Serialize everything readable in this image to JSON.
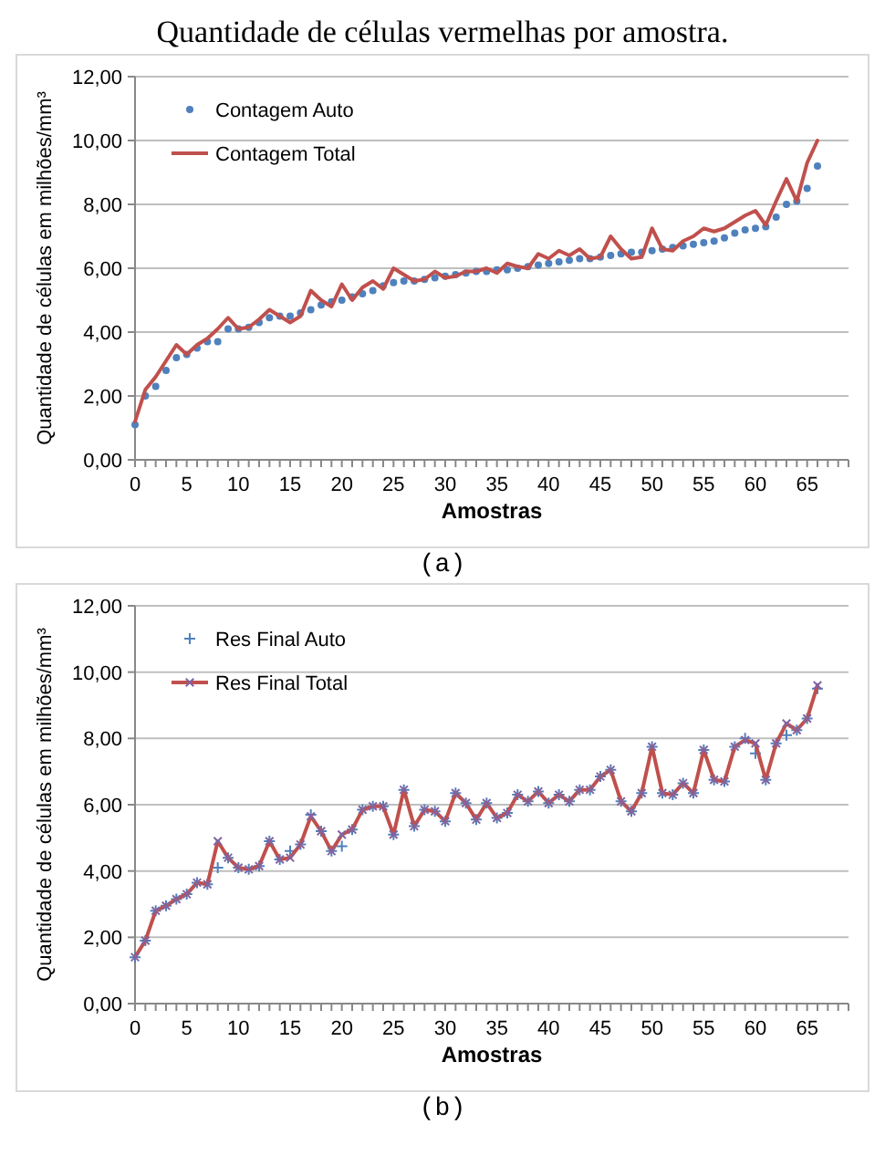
{
  "chart_data": [
    {
      "type": "line",
      "title": "Quantidade de células vermelhas por amostra.",
      "xlabel": "Amostras",
      "ylabel": "Quantidade de células em milhões/mm³",
      "annotations": [
        "(a)"
      ],
      "xlim": [
        0,
        69
      ],
      "xticks": [
        0,
        5,
        10,
        15,
        20,
        25,
        30,
        35,
        40,
        45,
        50,
        55,
        60,
        65
      ],
      "ylim": [
        0,
        12
      ],
      "yticks": [
        {
          "value": 0,
          "label": "0,00"
        },
        {
          "value": 2,
          "label": "2,00"
        },
        {
          "value": 4,
          "label": "4,00"
        },
        {
          "value": 6,
          "label": "6,00"
        },
        {
          "value": 8,
          "label": "8,00"
        },
        {
          "value": 10,
          "label": "10,00"
        },
        {
          "value": 12,
          "label": "12,00"
        }
      ],
      "grid": "y",
      "legend": "top left",
      "x": [
        0,
        1,
        2,
        3,
        4,
        5,
        6,
        7,
        8,
        9,
        10,
        11,
        12,
        13,
        14,
        15,
        16,
        17,
        18,
        19,
        20,
        21,
        22,
        23,
        24,
        25,
        26,
        27,
        28,
        29,
        30,
        31,
        32,
        33,
        34,
        35,
        36,
        37,
        38,
        39,
        40,
        41,
        42,
        43,
        44,
        45,
        46,
        47,
        48,
        49,
        50,
        51,
        52,
        53,
        54,
        55,
        56,
        57,
        58,
        59,
        60,
        61,
        62,
        63,
        64,
        65,
        66
      ],
      "series": [
        {
          "name": "Contagem Auto",
          "type": "scatter",
          "marker": "circle",
          "color": "#4f81bd",
          "values": [
            1.1,
            2.0,
            2.3,
            2.8,
            3.2,
            3.3,
            3.5,
            3.7,
            3.7,
            4.1,
            4.1,
            4.15,
            4.3,
            4.45,
            4.5,
            4.5,
            4.6,
            4.7,
            4.85,
            4.95,
            5.0,
            5.1,
            5.2,
            5.3,
            5.45,
            5.55,
            5.6,
            5.6,
            5.65,
            5.7,
            5.75,
            5.8,
            5.85,
            5.9,
            5.9,
            5.95,
            5.95,
            6.0,
            6.05,
            6.1,
            6.15,
            6.2,
            6.25,
            6.3,
            6.3,
            6.35,
            6.4,
            6.45,
            6.5,
            6.5,
            6.55,
            6.6,
            6.65,
            6.7,
            6.75,
            6.8,
            6.85,
            6.95,
            7.1,
            7.2,
            7.25,
            7.3,
            7.6,
            8.0,
            8.1,
            8.5,
            9.2
          ]
        },
        {
          "name": "Contagem Total",
          "type": "line",
          "marker": "none",
          "color": "#c0504d",
          "values": [
            1.2,
            2.2,
            2.6,
            3.1,
            3.6,
            3.3,
            3.6,
            3.8,
            4.1,
            4.45,
            4.1,
            4.15,
            4.4,
            4.7,
            4.5,
            4.3,
            4.5,
            5.3,
            5.0,
            4.8,
            5.5,
            5.0,
            5.4,
            5.6,
            5.35,
            6.0,
            5.8,
            5.6,
            5.65,
            5.9,
            5.7,
            5.75,
            5.9,
            5.9,
            6.0,
            5.85,
            6.15,
            6.05,
            6.0,
            6.45,
            6.3,
            6.55,
            6.4,
            6.6,
            6.3,
            6.35,
            7.0,
            6.6,
            6.3,
            6.35,
            7.25,
            6.6,
            6.55,
            6.85,
            7.0,
            7.25,
            7.15,
            7.25,
            7.45,
            7.65,
            7.8,
            7.35,
            8.1,
            8.8,
            8.1,
            9.3,
            10.0
          ]
        }
      ]
    },
    {
      "type": "line",
      "xlabel": "Amostras",
      "ylabel": "Quantidade de células em milhões/mm³",
      "annotations": [
        "(b)"
      ],
      "xlim": [
        0,
        69
      ],
      "xticks": [
        0,
        5,
        10,
        15,
        20,
        25,
        30,
        35,
        40,
        45,
        50,
        55,
        60,
        65
      ],
      "ylim": [
        0,
        12
      ],
      "yticks": [
        {
          "value": 0,
          "label": "0,00"
        },
        {
          "value": 2,
          "label": "2,00"
        },
        {
          "value": 4,
          "label": "4,00"
        },
        {
          "value": 6,
          "label": "6,00"
        },
        {
          "value": 8,
          "label": "8,00"
        },
        {
          "value": 10,
          "label": "10,00"
        },
        {
          "value": 12,
          "label": "12,00"
        }
      ],
      "grid": "y",
      "legend": "top left",
      "x": [
        0,
        1,
        2,
        3,
        4,
        5,
        6,
        7,
        8,
        9,
        10,
        11,
        12,
        13,
        14,
        15,
        16,
        17,
        18,
        19,
        20,
        21,
        22,
        23,
        24,
        25,
        26,
        27,
        28,
        29,
        30,
        31,
        32,
        33,
        34,
        35,
        36,
        37,
        38,
        39,
        40,
        41,
        42,
        43,
        44,
        45,
        46,
        47,
        48,
        49,
        50,
        51,
        52,
        53,
        54,
        55,
        56,
        57,
        58,
        59,
        60,
        61,
        62,
        63,
        64,
        65,
        66
      ],
      "series": [
        {
          "name": "Res Final Auto",
          "type": "scatter",
          "marker": "cross",
          "color": "#4f81bd",
          "values": [
            1.4,
            1.9,
            2.8,
            2.95,
            3.15,
            3.3,
            3.65,
            3.6,
            4.1,
            4.4,
            4.1,
            4.05,
            4.15,
            4.9,
            4.35,
            4.6,
            4.8,
            5.7,
            5.2,
            4.6,
            4.75,
            5.25,
            5.85,
            5.95,
            5.95,
            5.1,
            6.45,
            5.35,
            5.85,
            5.8,
            5.5,
            6.35,
            6.05,
            5.55,
            6.05,
            5.6,
            5.75,
            6.3,
            6.1,
            6.4,
            6.05,
            6.3,
            6.1,
            6.45,
            6.45,
            6.85,
            7.05,
            6.1,
            5.8,
            6.35,
            7.75,
            6.35,
            6.3,
            6.65,
            6.35,
            7.65,
            6.75,
            6.7,
            7.75,
            8.0,
            7.55,
            6.75,
            7.85,
            8.1,
            8.25,
            8.6,
            9.5
          ]
        },
        {
          "name": "Res Final Total",
          "type": "line",
          "marker": "cross",
          "color": "#c0504d",
          "values": [
            1.4,
            1.9,
            2.8,
            2.95,
            3.15,
            3.3,
            3.65,
            3.6,
            4.9,
            4.4,
            4.1,
            4.05,
            4.15,
            4.9,
            4.35,
            4.4,
            4.8,
            5.65,
            5.2,
            4.6,
            5.1,
            5.25,
            5.85,
            5.95,
            5.95,
            5.1,
            6.45,
            5.35,
            5.85,
            5.8,
            5.5,
            6.35,
            6.05,
            5.55,
            6.05,
            5.6,
            5.75,
            6.3,
            6.1,
            6.4,
            6.05,
            6.3,
            6.1,
            6.45,
            6.45,
            6.85,
            7.05,
            6.1,
            5.8,
            6.35,
            7.75,
            6.35,
            6.3,
            6.65,
            6.35,
            7.65,
            6.75,
            6.7,
            7.75,
            7.95,
            7.85,
            6.75,
            7.85,
            8.45,
            8.25,
            8.6,
            9.6
          ]
        }
      ]
    }
  ]
}
